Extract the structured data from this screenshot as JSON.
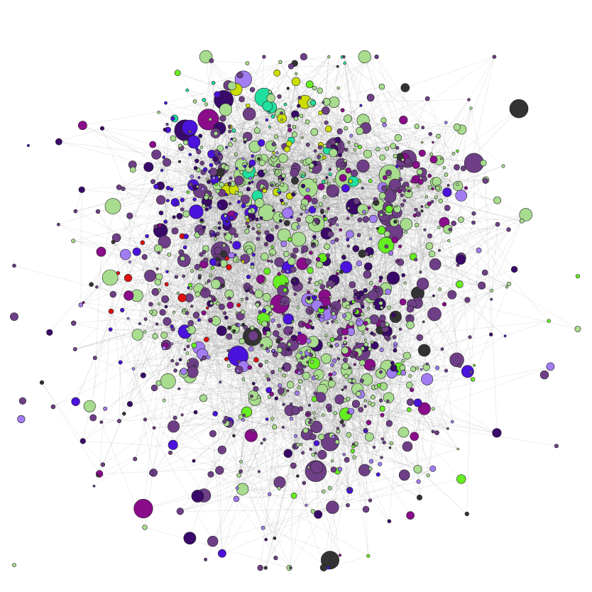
{
  "graph": {
    "type": "network",
    "node_colors": [
      "#a8dc8e",
      "#6e3f86",
      "#4a12dc",
      "#a27cf2",
      "#8a0c8a",
      "#3a0a6a",
      "#333333",
      "#ccdd00",
      "#e01010",
      "#20e0a0",
      "#66ee22"
    ],
    "edge_color": "#8f8f8f"
  }
}
